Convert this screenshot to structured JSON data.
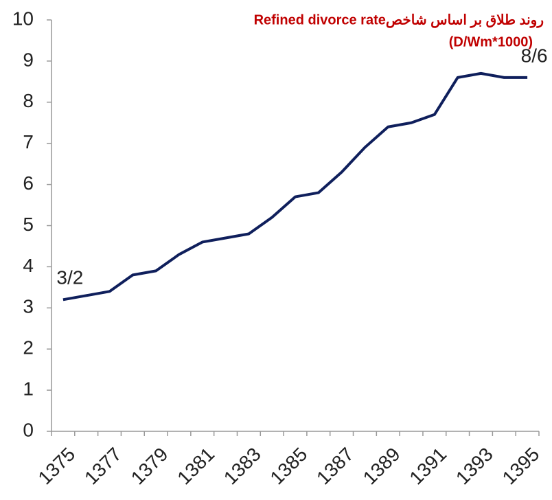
{
  "chart_data": {
    "type": "line",
    "title": "روند طلاق بر اساس شاخصRefined divorce rate",
    "subtitle": "(D/Wm*1000)",
    "categories": [
      "1375",
      null,
      "1377",
      null,
      "1379",
      null,
      "1381",
      null,
      "1383",
      null,
      "1385",
      null,
      "1387",
      null,
      "1389",
      null,
      "1391",
      null,
      "1393",
      null,
      "1395"
    ],
    "series": [
      {
        "color": "#0f1f5c",
        "values": [
          3.2,
          3.3,
          3.4,
          3.8,
          3.9,
          4.3,
          4.6,
          4.7,
          4.8,
          5.2,
          5.7,
          5.8,
          6.3,
          6.9,
          7.4,
          7.5,
          7.7,
          8.6,
          8.7,
          8.6,
          8.6
        ],
        "value_labels": [
          "3/2",
          null,
          null,
          null,
          null,
          null,
          null,
          null,
          null,
          null,
          null,
          null,
          null,
          null,
          null,
          null,
          null,
          null,
          null,
          null,
          "8/6"
        ]
      }
    ],
    "ylim": [
      0,
      10
    ],
    "yticks": [
      0,
      1,
      2,
      3,
      4,
      5,
      6,
      7,
      8,
      9,
      10
    ]
  }
}
